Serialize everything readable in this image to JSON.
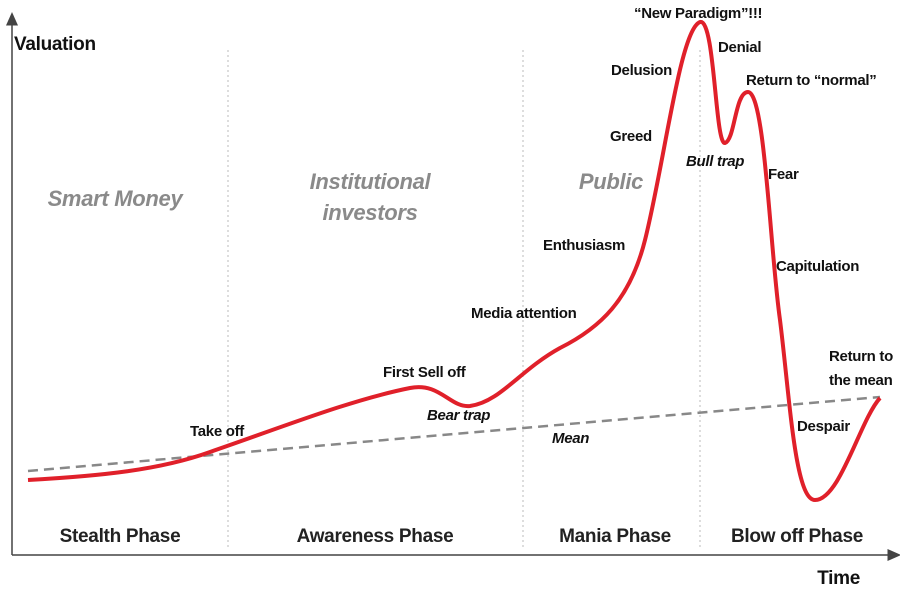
{
  "axes": {
    "y_label": "Valuation",
    "x_label": "Time"
  },
  "phases": [
    "Stealth Phase",
    "Awareness Phase",
    "Mania Phase",
    "Blow off Phase"
  ],
  "investors": [
    [
      "Smart Money"
    ],
    [
      "Institutional",
      "investors"
    ],
    [
      "Public"
    ]
  ],
  "annotations": {
    "take_off": "Take off",
    "first_sell_off": "First Sell off",
    "bear_trap": "Bear trap",
    "media_attention": "Media attention",
    "enthusiasm": "Enthusiasm",
    "greed": "Greed",
    "delusion": "Delusion",
    "new_paradigm": "“New Paradigm”!!!",
    "denial": "Denial",
    "return_to_normal": "Return to “normal”",
    "bull_trap": "Bull trap",
    "fear": "Fear",
    "capitulation": "Capitulation",
    "despair": "Despair",
    "return_to_mean": [
      "Return to",
      "the mean"
    ],
    "mean": "Mean"
  }
}
